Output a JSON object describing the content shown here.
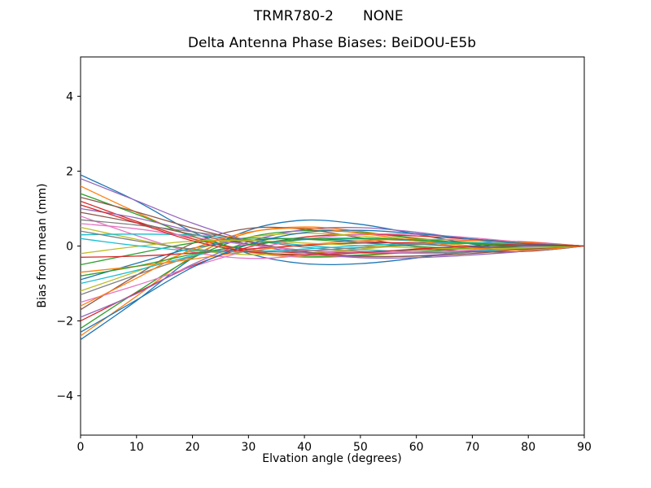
{
  "header": {
    "left": "TRMR780-2",
    "right": "NONE"
  },
  "chart_data": {
    "type": "line",
    "title": "Delta Antenna Phase Biases: BeiDOU-E5b",
    "xlabel": "Elvation angle (degrees)",
    "ylabel": "Bias from mean (mm)",
    "xlim": [
      0,
      90
    ],
    "ylim": [
      -5.05,
      5.05
    ],
    "x_ticks": [
      0,
      10,
      20,
      30,
      40,
      50,
      60,
      70,
      80,
      90
    ],
    "x_tick_labels": [
      "0",
      "10",
      "20",
      "30",
      "40",
      "50",
      "60",
      "70",
      "80",
      "90"
    ],
    "y_ticks": [
      -4,
      -2,
      0,
      2,
      4
    ],
    "y_tick_labels": [
      "−4",
      "−2",
      "0",
      "2",
      "4"
    ],
    "grid": false,
    "legend": "none",
    "background": "#ffffff",
    "spine_color": "#000000",
    "x": [
      0,
      10,
      20,
      30,
      40,
      50,
      60,
      70,
      80,
      90
    ],
    "palette": [
      "#1f77b4",
      "#ff7f0e",
      "#2ca02c",
      "#d62728",
      "#9467bd",
      "#8c564b",
      "#e377c2",
      "#7f7f7f",
      "#bcbd22",
      "#17becf"
    ],
    "series": [
      {
        "color": "#1f77b4",
        "values": [
          1.9,
          1.2,
          0.38,
          -0.2,
          -0.47,
          -0.47,
          -0.32,
          -0.11,
          0.04,
          0
        ]
      },
      {
        "color": "#ff7f0e",
        "values": [
          1.6,
          0.9,
          0.25,
          -0.16,
          -0.3,
          -0.26,
          -0.15,
          -0.05,
          0.01,
          0
        ]
      },
      {
        "color": "#2ca02c",
        "values": [
          1.4,
          0.85,
          0.27,
          -0.12,
          -0.27,
          -0.24,
          -0.15,
          -0.06,
          0.02,
          0
        ]
      },
      {
        "color": "#d62728",
        "values": [
          1.2,
          0.66,
          0.19,
          -0.09,
          -0.18,
          -0.16,
          -0.1,
          -0.04,
          -0.02,
          0
        ]
      },
      {
        "color": "#9467bd",
        "values": [
          1.0,
          0.75,
          0.39,
          0.05,
          -0.19,
          -0.28,
          -0.26,
          -0.16,
          -0.04,
          0
        ]
      },
      {
        "color": "#8c564b",
        "values": [
          0.9,
          0.62,
          0.31,
          0.05,
          -0.11,
          -0.18,
          -0.18,
          -0.12,
          -0.05,
          0
        ]
      },
      {
        "color": "#e377c2",
        "values": [
          0.8,
          0.28,
          -0.16,
          -0.33,
          -0.25,
          -0.08,
          0.07,
          0.14,
          0.11,
          0
        ]
      },
      {
        "color": "#7f7f7f",
        "values": [
          0.7,
          0.56,
          0.38,
          0.17,
          -0.03,
          -0.14,
          -0.19,
          -0.16,
          -0.09,
          0
        ]
      },
      {
        "color": "#bcbd22",
        "values": [
          0.5,
          0.18,
          -0.1,
          -0.23,
          -0.19,
          -0.08,
          0.03,
          0.09,
          0.08,
          0
        ]
      },
      {
        "color": "#17becf",
        "values": [
          0.3,
          0.32,
          0.29,
          0.17,
          0.02,
          -0.09,
          -0.15,
          -0.14,
          -0.07,
          0
        ]
      },
      {
        "color": "#1f77b4",
        "values": [
          -2.5,
          -1.46,
          -0.32,
          0.42,
          0.69,
          0.58,
          0.32,
          0.05,
          -0.12,
          0
        ]
      },
      {
        "color": "#ff7f0e",
        "values": [
          -2.4,
          -1.34,
          -0.28,
          0.35,
          0.51,
          0.39,
          0.18,
          0.0,
          -0.08,
          0
        ]
      },
      {
        "color": "#2ca02c",
        "values": [
          -2.2,
          -1.23,
          -0.32,
          0.23,
          0.41,
          0.36,
          0.21,
          0.06,
          -0.01,
          0
        ]
      },
      {
        "color": "#d62728",
        "values": [
          -2.0,
          -1.25,
          -0.53,
          -0.03,
          0.24,
          0.31,
          0.27,
          0.18,
          0.1,
          0
        ]
      },
      {
        "color": "#9467bd",
        "values": [
          -1.9,
          -1.27,
          -0.49,
          0.11,
          0.44,
          0.49,
          0.37,
          0.17,
          -0.01,
          0
        ]
      },
      {
        "color": "#8c564b",
        "values": [
          -1.7,
          -0.78,
          0.07,
          0.47,
          0.45,
          0.22,
          -0.02,
          -0.15,
          -0.14,
          0
        ]
      },
      {
        "color": "#e377c2",
        "values": [
          -1.5,
          -1.05,
          -0.55,
          -0.12,
          0.18,
          0.31,
          0.31,
          0.22,
          0.09,
          0
        ]
      },
      {
        "color": "#7f7f7f",
        "values": [
          -1.3,
          -0.77,
          -0.28,
          0.04,
          0.18,
          0.19,
          0.14,
          0.08,
          0.04,
          0
        ]
      },
      {
        "color": "#bcbd22",
        "values": [
          -1.2,
          -0.68,
          -0.12,
          0.23,
          0.34,
          0.27,
          0.14,
          0.0,
          -0.07,
          0
        ]
      },
      {
        "color": "#17becf",
        "values": [
          -1.0,
          -0.65,
          -0.26,
          0.03,
          0.17,
          0.19,
          0.15,
          0.09,
          0.01,
          0
        ]
      },
      {
        "color": "#1f77b4",
        "values": [
          -0.9,
          -0.46,
          -0.06,
          0.15,
          0.2,
          0.13,
          0.05,
          -0.02,
          -0.04,
          0
        ]
      },
      {
        "color": "#ff7f0e",
        "values": [
          -0.7,
          -0.54,
          -0.35,
          -0.14,
          0.03,
          0.14,
          0.18,
          0.15,
          0.09,
          0
        ]
      },
      {
        "color": "#2ca02c",
        "values": [
          -0.5,
          -0.2,
          0.08,
          0.21,
          0.18,
          0.09,
          -0.01,
          -0.07,
          -0.07,
          0
        ]
      },
      {
        "color": "#d62728",
        "values": [
          -0.3,
          -0.27,
          -0.19,
          -0.08,
          0.02,
          0.08,
          0.09,
          0.08,
          0.04,
          0
        ]
      },
      {
        "color": "#9467bd",
        "values": [
          1.8,
          1.21,
          0.61,
          0.14,
          -0.17,
          -0.31,
          -0.31,
          -0.24,
          -0.13,
          0
        ]
      },
      {
        "color": "#8c564b",
        "values": [
          1.3,
          0.91,
          0.48,
          0.11,
          -0.15,
          -0.27,
          -0.27,
          -0.2,
          -0.08,
          0
        ]
      },
      {
        "color": "#e377c2",
        "values": [
          0.6,
          0.46,
          0.24,
          0.03,
          -0.11,
          -0.17,
          -0.16,
          -0.11,
          -0.03,
          0
        ]
      },
      {
        "color": "#7f7f7f",
        "values": [
          0.4,
          0.14,
          -0.08,
          -0.16,
          -0.13,
          -0.04,
          0.04,
          0.07,
          0.06,
          0
        ]
      },
      {
        "color": "#bcbd22",
        "values": [
          -0.2,
          -0.01,
          0.13,
          0.15,
          0.08,
          0.01,
          -0.05,
          -0.08,
          -0.05,
          0
        ]
      },
      {
        "color": "#17becf",
        "values": [
          0.2,
          0.01,
          -0.13,
          -0.15,
          -0.08,
          0.01,
          0.07,
          0.09,
          0.05,
          0
        ]
      },
      {
        "color": "#1f77b4",
        "values": [
          -2.3,
          -1.44,
          -0.57,
          0.04,
          0.36,
          0.42,
          0.33,
          0.19,
          0.06,
          0
        ]
      },
      {
        "color": "#ff7f0e",
        "values": [
          -1.6,
          -0.86,
          -0.08,
          0.37,
          0.48,
          0.34,
          0.14,
          -0.05,
          -0.11,
          0
        ]
      },
      {
        "color": "#2ca02c",
        "values": [
          -0.8,
          -0.54,
          -0.22,
          0.03,
          0.18,
          0.21,
          0.16,
          0.08,
          0.01,
          0
        ]
      },
      {
        "color": "#d62728",
        "values": [
          1.1,
          0.62,
          0.14,
          -0.15,
          -0.23,
          -0.18,
          -0.08,
          0.0,
          0.03,
          0
        ]
      }
    ]
  }
}
